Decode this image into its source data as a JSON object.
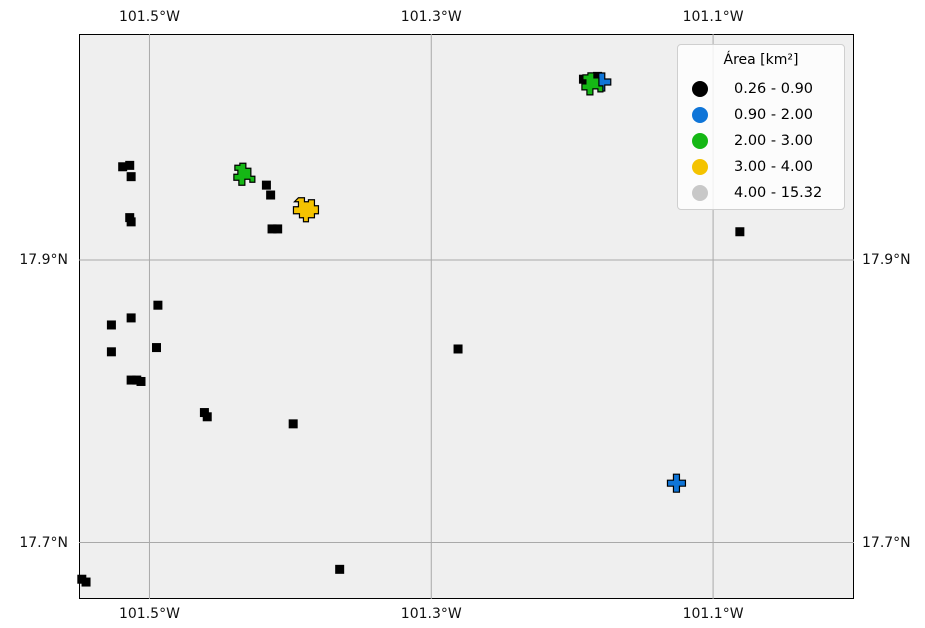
{
  "map": {
    "lon_range": [
      -101.55,
      -101.0
    ],
    "lat_range": [
      17.66,
      18.06
    ],
    "lon_ticks": [
      {
        "value": -101.5,
        "label": "101.5°W"
      },
      {
        "value": -101.3,
        "label": "101.3°W"
      },
      {
        "value": -101.1,
        "label": "101.1°W"
      }
    ],
    "lat_ticks": [
      {
        "value": 17.9,
        "label": "17.9°N"
      },
      {
        "value": 17.7,
        "label": "17.7°N"
      }
    ],
    "gridlines": true
  },
  "legend": {
    "title": "Área [km²]",
    "placement": "top-right",
    "classes": [
      {
        "label": "0.26 - 0.90",
        "color": "#000000"
      },
      {
        "label": "0.90 - 2.00",
        "color": "#0f75d8"
      },
      {
        "label": "2.00 - 3.00",
        "color": "#15b715"
      },
      {
        "label": "3.00 - 4.00",
        "color": "#f4c300"
      },
      {
        "label": "4.00 - 15.32",
        "color": "#c8c8c8"
      }
    ]
  },
  "features": [
    {
      "lon": -101.548,
      "lat": 17.674,
      "class": 0
    },
    {
      "lon": -101.545,
      "lat": 17.672,
      "class": 0
    },
    {
      "lon": -101.527,
      "lat": 17.854,
      "class": 0
    },
    {
      "lon": -101.527,
      "lat": 17.835,
      "class": 0
    },
    {
      "lon": -101.519,
      "lat": 17.966,
      "class": 0
    },
    {
      "lon": -101.514,
      "lat": 17.967,
      "class": 0
    },
    {
      "lon": -101.513,
      "lat": 17.959,
      "class": 0
    },
    {
      "lon": -101.514,
      "lat": 17.93,
      "class": 0
    },
    {
      "lon": -101.513,
      "lat": 17.927,
      "class": 0
    },
    {
      "lon": -101.513,
      "lat": 17.859,
      "class": 0
    },
    {
      "lon": -101.513,
      "lat": 17.815,
      "class": 0
    },
    {
      "lon": -101.509,
      "lat": 17.815,
      "class": 0
    },
    {
      "lon": -101.506,
      "lat": 17.814,
      "class": 0
    },
    {
      "lon": -101.495,
      "lat": 17.838,
      "class": 0
    },
    {
      "lon": -101.494,
      "lat": 17.868,
      "class": 0
    },
    {
      "lon": -101.461,
      "lat": 17.792,
      "class": 0
    },
    {
      "lon": -101.459,
      "lat": 17.789,
      "class": 0
    },
    {
      "lon": -101.417,
      "lat": 17.953,
      "class": 0
    },
    {
      "lon": -101.414,
      "lat": 17.946,
      "class": 0
    },
    {
      "lon": -101.413,
      "lat": 17.922,
      "class": 0
    },
    {
      "lon": -101.409,
      "lat": 17.922,
      "class": 0
    },
    {
      "lon": -101.398,
      "lat": 17.784,
      "class": 0
    },
    {
      "lon": -101.365,
      "lat": 17.681,
      "class": 0
    },
    {
      "lon": -101.281,
      "lat": 17.837,
      "class": 0
    },
    {
      "lon": -101.081,
      "lat": 17.92,
      "class": 0
    },
    {
      "lon": -101.192,
      "lat": 18.028,
      "class": 0
    },
    {
      "lon": -101.182,
      "lat": 18.03,
      "class": 0
    },
    {
      "lon": -101.126,
      "lat": 17.742,
      "class": 1
    },
    {
      "lon": -101.179,
      "lat": 18.026,
      "class": 1
    },
    {
      "lon": -101.433,
      "lat": 17.96,
      "class": 2
    },
    {
      "lon": -101.186,
      "lat": 18.024,
      "class": 2
    },
    {
      "lon": -101.39,
      "lat": 17.937,
      "class": 3
    }
  ]
}
